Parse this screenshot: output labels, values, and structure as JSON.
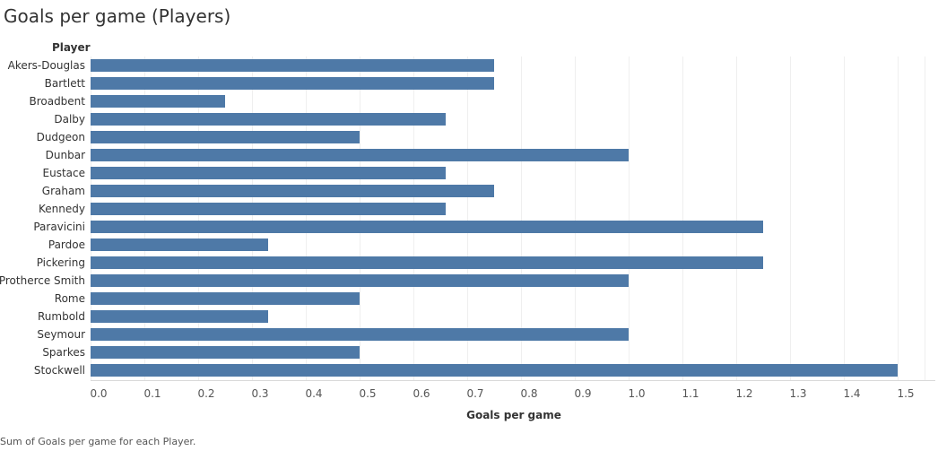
{
  "title": "Goals per game (Players)",
  "row_header": "Player",
  "footnote": "Sum of Goals per game for each Player.",
  "colors": {
    "bar": "#4e79a7",
    "grid": "#efefef",
    "axis": "#d9d9d9"
  },
  "chart_data": {
    "type": "bar",
    "orientation": "horizontal",
    "title": "Goals per game (Players)",
    "xlabel": "Goals per game",
    "ylabel": "Player",
    "xlim": [
      0,
      1.55
    ],
    "ticks": [
      "0.0",
      "0.1",
      "0.2",
      "0.3",
      "0.4",
      "0.5",
      "0.6",
      "0.7",
      "0.8",
      "0.9",
      "1.0",
      "1.1",
      "1.2",
      "1.3",
      "1.4",
      "1.5"
    ],
    "grid": true,
    "categories": [
      "Akers-Douglas",
      "Bartlett",
      "Broadbent",
      "Dalby",
      "Dudgeon",
      "Dunbar",
      "Eustace",
      "Graham",
      "Kennedy",
      "Paravicini",
      "Pardoe",
      "Pickering",
      "Protherce Smith",
      "Rome",
      "Rumbold",
      "Seymour",
      "Sparkes",
      "Stockwell"
    ],
    "values": [
      0.75,
      0.75,
      0.25,
      0.66,
      0.5,
      1.0,
      0.66,
      0.75,
      0.66,
      1.25,
      0.33,
      1.25,
      1.0,
      0.5,
      0.33,
      1.0,
      0.5,
      1.5
    ]
  }
}
